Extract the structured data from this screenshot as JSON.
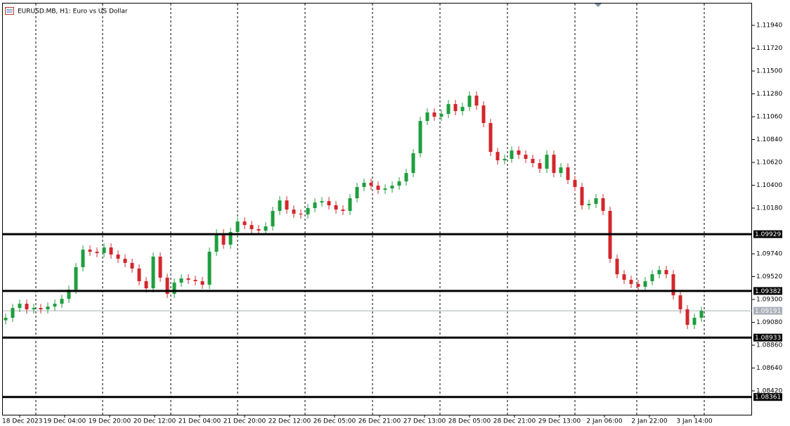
{
  "chart_data": {
    "type": "candlestick",
    "title": "EURUSD.MB, H1:  Euro vs US Dollar",
    "ylim": [
      1.0819,
      1.1215
    ],
    "yticks": [
      {
        "value": 1.1194,
        "label": "1.11940"
      },
      {
        "value": 1.1172,
        "label": "1.11720"
      },
      {
        "value": 1.115,
        "label": "1.11500"
      },
      {
        "value": 1.1128,
        "label": "1.11280"
      },
      {
        "value": 1.1106,
        "label": "1.11060"
      },
      {
        "value": 1.1084,
        "label": "1.10840"
      },
      {
        "value": 1.1062,
        "label": "1.10620"
      },
      {
        "value": 1.104,
        "label": "1.10400"
      },
      {
        "value": 1.1018,
        "label": "1.10180"
      },
      {
        "value": 1.0974,
        "label": "1.09740"
      },
      {
        "value": 1.0952,
        "label": "1.09520"
      },
      {
        "value": 1.093,
        "label": "1.09300"
      },
      {
        "value": 1.0908,
        "label": "1.09080"
      },
      {
        "value": 1.0886,
        "label": "1.08860"
      },
      {
        "value": 1.0864,
        "label": "1.08640"
      },
      {
        "value": 1.0842,
        "label": "1.08420"
      }
    ],
    "x_labels": [
      "18 Dec 2023",
      "19 Dec 04:00",
      "19 Dec 20:00",
      "20 Dec 12:00",
      "21 Dec 04:00",
      "21 Dec 20:00",
      "22 Dec 12:00",
      "26 Dec 05:00",
      "26 Dec 21:00",
      "27 Dec 13:00",
      "28 Dec 05:00",
      "28 Dec 21:00",
      "29 Dec 13:00",
      "2 Jan 06:00",
      "2 Jan 22:00",
      "3 Jan 14:00"
    ],
    "up_color": "#1e9e3e",
    "down_color": "#d3272b",
    "levels": [
      1.09929,
      1.09382,
      1.08933,
      1.08361
    ],
    "bid": 1.09191,
    "open": [
      1.091,
      1.09124,
      1.09218,
      1.09259,
      1.09205,
      1.09218,
      1.09205,
      1.09232,
      1.09259,
      1.09306,
      1.09394,
      1.09611,
      1.0978,
      1.0976,
      1.09747,
      1.09801,
      1.09733,
      1.09692,
      1.09652,
      1.09598,
      1.09476,
      1.09408,
      1.09713,
      1.0951,
      1.09354,
      1.09462,
      1.09503,
      1.09489,
      1.09476,
      1.09442,
      1.0976,
      1.09936,
      1.09828,
      1.0995,
      1.10051,
      1.10017,
      1.09977,
      1.09963,
      1.10004,
      1.10153,
      1.10254,
      1.10166,
      1.10126,
      1.10119,
      1.1018,
      1.10234,
      1.10247,
      1.10207,
      1.10166,
      1.10153,
      1.10275,
      1.10383,
      1.10424,
      1.10396,
      1.10356,
      1.10369,
      1.10396,
      1.10437,
      1.10518,
      1.10708,
      1.11019,
      1.11101,
      1.1106,
      1.11087,
      1.11182,
      1.11114,
      1.11155,
      1.11263,
      1.11168,
      1.10999,
      1.10721,
      1.1064,
      1.10654,
      1.10735,
      1.10694,
      1.10654,
      1.10613,
      1.10559,
      1.10694,
      1.10518,
      1.10572,
      1.10451,
      1.10383,
      1.10207,
      1.1022,
      1.10275,
      1.10153,
      1.09692,
      1.09543,
      1.09489,
      1.09449,
      1.09422,
      1.09476,
      1.09543,
      1.09584,
      1.09543,
      1.0934,
      1.09205,
      1.09056,
      1.09124
    ],
    "high": [
      1.09164,
      1.09258,
      1.09299,
      1.09299,
      1.09258,
      1.09258,
      1.09272,
      1.09299,
      1.09346,
      1.09434,
      1.09651,
      1.0982,
      1.0982,
      1.098,
      1.09841,
      1.09841,
      1.09773,
      1.09732,
      1.09692,
      1.09638,
      1.09516,
      1.09753,
      1.09753,
      1.0955,
      1.09502,
      1.09543,
      1.09543,
      1.09529,
      1.09516,
      1.098,
      1.09976,
      1.09976,
      1.0999,
      1.10091,
      1.10091,
      1.10057,
      1.10017,
      1.10044,
      1.10193,
      1.10294,
      1.10294,
      1.10206,
      1.10166,
      1.1022,
      1.10274,
      1.10287,
      1.10287,
      1.10247,
      1.10206,
      1.10315,
      1.10423,
      1.10464,
      1.10464,
      1.10436,
      1.10409,
      1.10436,
      1.10477,
      1.10558,
      1.10748,
      1.11059,
      1.11141,
      1.11141,
      1.11127,
      1.11222,
      1.11222,
      1.11195,
      1.11303,
      1.11303,
      1.11208,
      1.11039,
      1.10761,
      1.10694,
      1.10775,
      1.10775,
      1.10734,
      1.10694,
      1.10653,
      1.10734,
      1.10734,
      1.10612,
      1.10612,
      1.10491,
      1.10423,
      1.1026,
      1.10315,
      1.10315,
      1.10193,
      1.09732,
      1.09583,
      1.09529,
      1.09489,
      1.09516,
      1.09583,
      1.09624,
      1.09624,
      1.09583,
      1.0938,
      1.09245,
      1.09164,
      1.09231
    ],
    "low": [
      1.0906,
      1.09084,
      1.09178,
      1.09165,
      1.09165,
      1.09165,
      1.09165,
      1.09192,
      1.09219,
      1.09266,
      1.09354,
      1.09571,
      1.0972,
      1.09707,
      1.09707,
      1.09693,
      1.09652,
      1.09612,
      1.09558,
      1.09436,
      1.09368,
      1.09368,
      1.0947,
      1.09314,
      1.09314,
      1.09422,
      1.09449,
      1.09436,
      1.09402,
      1.09402,
      1.0972,
      1.09788,
      1.09788,
      1.0991,
      1.09977,
      1.09937,
      1.09923,
      1.09923,
      1.09964,
      1.10113,
      1.10126,
      1.10086,
      1.10079,
      1.10079,
      1.1014,
      1.10194,
      1.10167,
      1.10126,
      1.10113,
      1.10113,
      1.10235,
      1.10343,
      1.10356,
      1.10316,
      1.10316,
      1.10329,
      1.10356,
      1.10397,
      1.10478,
      1.10668,
      1.10979,
      1.1102,
      1.1102,
      1.11047,
      1.11074,
      1.11074,
      1.11115,
      1.11128,
      1.10959,
      1.10681,
      1.106,
      1.106,
      1.10614,
      1.10654,
      1.10614,
      1.10573,
      1.10519,
      1.10519,
      1.10478,
      1.10478,
      1.10411,
      1.10343,
      1.10167,
      1.10167,
      1.1018,
      1.10113,
      1.09652,
      1.09503,
      1.09449,
      1.09409,
      1.09382,
      1.09382,
      1.09436,
      1.09503,
      1.09503,
      1.093,
      1.09165,
      1.09016,
      1.09016,
      1.09084
    ],
    "close": [
      1.09124,
      1.09218,
      1.09259,
      1.09205,
      1.09218,
      1.09205,
      1.09232,
      1.09259,
      1.09306,
      1.09394,
      1.09611,
      1.0978,
      1.0976,
      1.09747,
      1.09801,
      1.09733,
      1.09692,
      1.09652,
      1.09598,
      1.09476,
      1.09408,
      1.09713,
      1.0951,
      1.09354,
      1.09462,
      1.09503,
      1.09489,
      1.09476,
      1.09442,
      1.0976,
      1.09936,
      1.09828,
      1.0995,
      1.10051,
      1.10017,
      1.09977,
      1.09963,
      1.10004,
      1.10153,
      1.10254,
      1.10166,
      1.10126,
      1.10119,
      1.1018,
      1.10234,
      1.10247,
      1.10207,
      1.10166,
      1.10153,
      1.10275,
      1.10383,
      1.10424,
      1.10396,
      1.10356,
      1.10369,
      1.10396,
      1.10437,
      1.10518,
      1.10708,
      1.11019,
      1.11101,
      1.1106,
      1.11087,
      1.11182,
      1.11114,
      1.11155,
      1.11263,
      1.11168,
      1.10999,
      1.10721,
      1.1064,
      1.10654,
      1.10735,
      1.10694,
      1.10654,
      1.10613,
      1.10559,
      1.10694,
      1.10518,
      1.10572,
      1.10451,
      1.10383,
      1.10207,
      1.1022,
      1.10275,
      1.10153,
      1.09692,
      1.09543,
      1.09489,
      1.09449,
      1.09422,
      1.09476,
      1.09543,
      1.09584,
      1.09543,
      1.0934,
      1.09205,
      1.09056,
      1.09124,
      1.09191
    ]
  }
}
